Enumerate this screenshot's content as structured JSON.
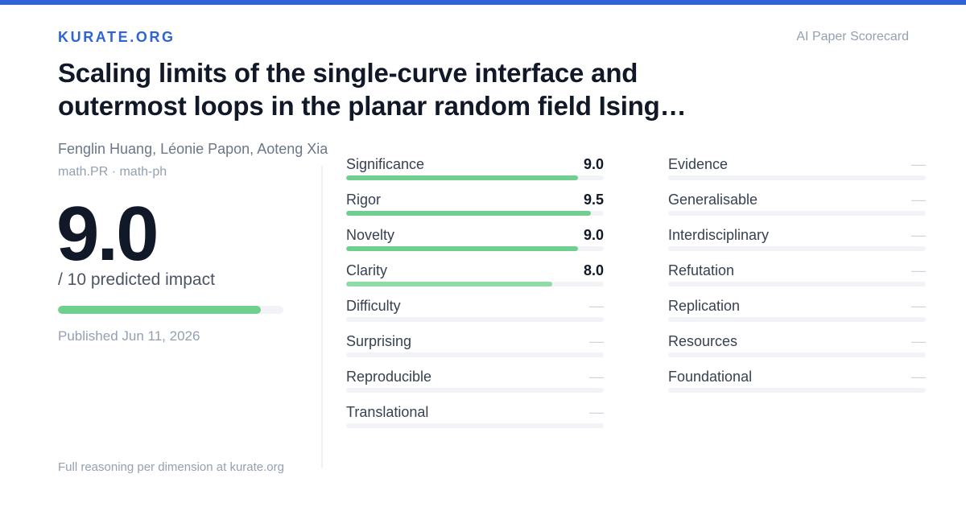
{
  "brand": "KURATE.ORG",
  "tagline": "AI Paper Scorecard",
  "paper": {
    "title": "Scaling limits of the single-curve interface and outermost loops in the planar random field Ising…",
    "authors": "Fenglin Huang, Léonie Papon, Aoteng Xia",
    "categories": "math.PR · math-ph",
    "published": "Published Jun 11, 2026"
  },
  "score": {
    "value": "9.0",
    "label": "/ 10 predicted impact",
    "fraction": 0.9,
    "bar_color": "#6fcf8f"
  },
  "metrics_left": [
    {
      "name": "Significance",
      "value": "9.0",
      "fraction": 0.9,
      "color": "#6fcf8f"
    },
    {
      "name": "Rigor",
      "value": "9.5",
      "fraction": 0.95,
      "color": "#6fcf8f"
    },
    {
      "name": "Novelty",
      "value": "9.0",
      "fraction": 0.9,
      "color": "#6fcf8f"
    },
    {
      "name": "Clarity",
      "value": "8.0",
      "fraction": 0.8,
      "color": "#8edba6"
    },
    {
      "name": "Difficulty",
      "value": "—",
      "fraction": 0,
      "color": "#6fcf8f"
    },
    {
      "name": "Surprising",
      "value": "—",
      "fraction": 0,
      "color": "#6fcf8f"
    },
    {
      "name": "Reproducible",
      "value": "—",
      "fraction": 0,
      "color": "#6fcf8f"
    },
    {
      "name": "Translational",
      "value": "—",
      "fraction": 0,
      "color": "#6fcf8f"
    }
  ],
  "metrics_right": [
    {
      "name": "Evidence",
      "value": "—",
      "fraction": 0,
      "color": "#6fcf8f"
    },
    {
      "name": "Generalisable",
      "value": "—",
      "fraction": 0,
      "color": "#6fcf8f"
    },
    {
      "name": "Interdisciplinary",
      "value": "—",
      "fraction": 0,
      "color": "#6fcf8f"
    },
    {
      "name": "Refutation",
      "value": "—",
      "fraction": 0,
      "color": "#6fcf8f"
    },
    {
      "name": "Replication",
      "value": "—",
      "fraction": 0,
      "color": "#6fcf8f"
    },
    {
      "name": "Resources",
      "value": "—",
      "fraction": 0,
      "color": "#6fcf8f"
    },
    {
      "name": "Foundational",
      "value": "—",
      "fraction": 0,
      "color": "#6fcf8f"
    }
  ],
  "footer": "Full reasoning per dimension at kurate.org",
  "colors": {
    "accent": "#2f63d8",
    "title": "#111827",
    "muted": "#94a0b1",
    "track": "#f1f3f6"
  }
}
